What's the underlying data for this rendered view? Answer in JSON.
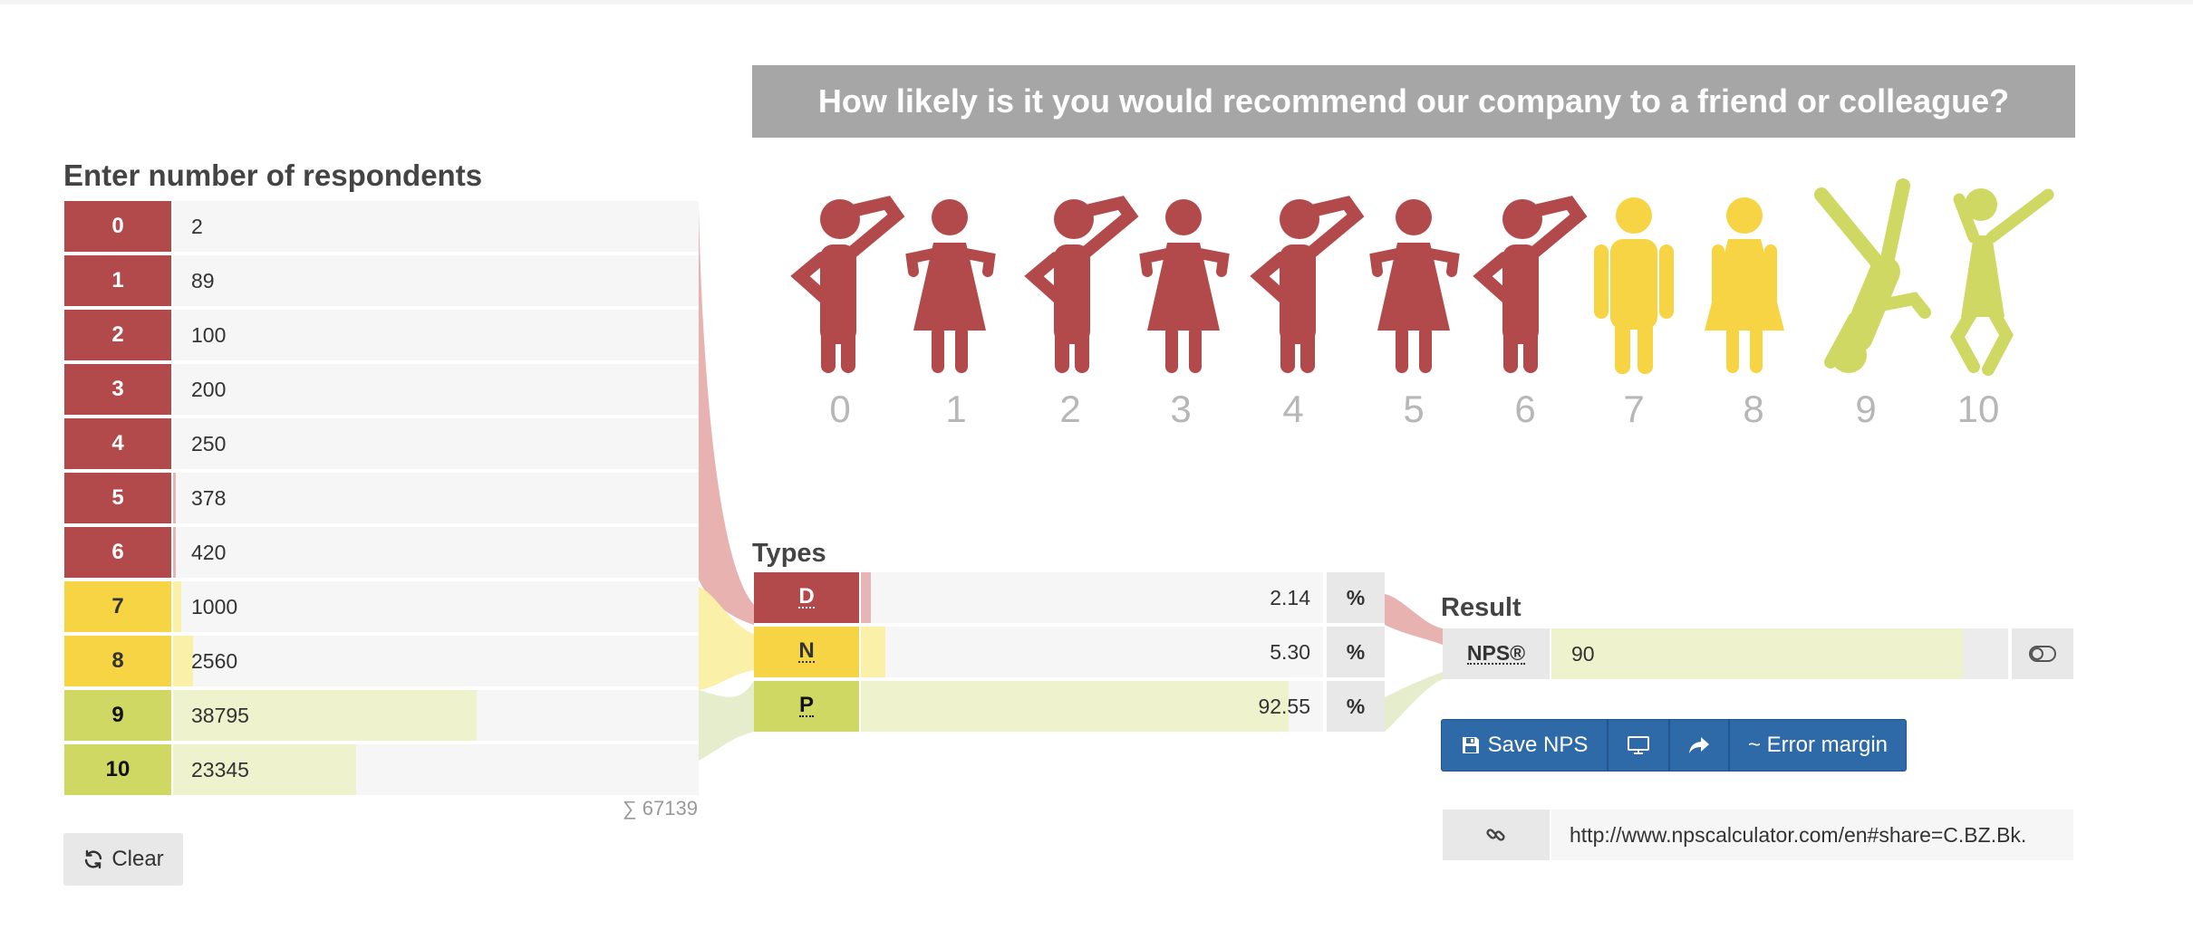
{
  "question": "How likely is it you would recommend our company to a friend or colleague?",
  "respondents": {
    "heading": "Enter number of respondents",
    "rows": [
      {
        "score": "0",
        "value": "2",
        "category": "detractor",
        "fill": 0.0
      },
      {
        "score": "1",
        "value": "89",
        "category": "detractor",
        "fill": 0.0
      },
      {
        "score": "2",
        "value": "100",
        "category": "detractor",
        "fill": 0.0
      },
      {
        "score": "3",
        "value": "200",
        "category": "detractor",
        "fill": 0.0
      },
      {
        "score": "4",
        "value": "250",
        "category": "detractor",
        "fill": 0.0
      },
      {
        "score": "5",
        "value": "378",
        "category": "detractor",
        "fill": 0.006
      },
      {
        "score": "6",
        "value": "420",
        "category": "detractor",
        "fill": 0.006
      },
      {
        "score": "7",
        "value": "1000",
        "category": "passive",
        "fill": 0.015
      },
      {
        "score": "8",
        "value": "2560",
        "category": "passive",
        "fill": 0.038
      },
      {
        "score": "9",
        "value": "38795",
        "category": "promoter",
        "fill": 0.578
      },
      {
        "score": "10",
        "value": "23345",
        "category": "promoter",
        "fill": 0.348
      }
    ],
    "sum": "∑ 67139",
    "clear_label": "Clear"
  },
  "scale_numbers": [
    "0",
    "1",
    "2",
    "3",
    "4",
    "5",
    "6",
    "7",
    "8",
    "9",
    "10"
  ],
  "types": {
    "heading": "Types",
    "rows": [
      {
        "label": "D",
        "value": "2.14",
        "unit": "%",
        "category": "detractor",
        "fill": 0.0214
      },
      {
        "label": "N",
        "value": "5.30",
        "unit": "%",
        "category": "passive",
        "fill": 0.053
      },
      {
        "label": "P",
        "value": "92.55",
        "unit": "%",
        "category": "promoter",
        "fill": 0.9255
      }
    ]
  },
  "result": {
    "heading": "Result",
    "nps_label": "NPS®",
    "nps_value": "90",
    "nps_fill": 0.9
  },
  "actions": {
    "save_label": "Save NPS",
    "error_margin_label": "~ Error margin"
  },
  "share_url": "http://www.npscalculator.com/en#share=C.BZ.Bk.",
  "colors": {
    "detractor": "#b24a4b",
    "passive": "#f6d443",
    "promoter": "#d0d864",
    "detractor_light": "#e4b6b6",
    "passive_light": "#fbf0a8",
    "promoter_light": "#eef3cd",
    "button_blue": "#2f6aa8"
  },
  "icons": {
    "clear": "refresh-icon",
    "save": "floppy-disk-icon",
    "present": "monitor-icon",
    "share": "share-arrow-icon",
    "toggle": "toggle-icon",
    "link": "link-icon"
  }
}
